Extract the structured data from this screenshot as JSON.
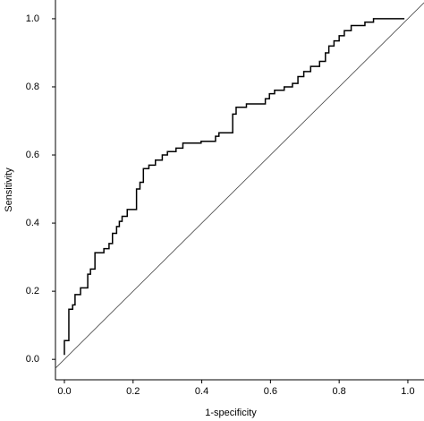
{
  "chart_data": {
    "type": "line",
    "xlabel": "1-specificity",
    "ylabel": "Sensitivity",
    "x": [
      0,
      0,
      0.013,
      0.013,
      0.024,
      0.024,
      0.031,
      0.031,
      0.047,
      0.047,
      0.068,
      0.068,
      0.076,
      0.076,
      0.089,
      0.089,
      0.115,
      0.115,
      0.13,
      0.13,
      0.14,
      0.14,
      0.152,
      0.152,
      0.16,
      0.16,
      0.168,
      0.168,
      0.183,
      0.183,
      0.21,
      0.21,
      0.22,
      0.22,
      0.23,
      0.23,
      0.246,
      0.246,
      0.265,
      0.265,
      0.285,
      0.285,
      0.3,
      0.3,
      0.325,
      0.325,
      0.345,
      0.345,
      0.398,
      0.398,
      0.44,
      0.44,
      0.45,
      0.45,
      0.49,
      0.49,
      0.5,
      0.5,
      0.53,
      0.53,
      0.585,
      0.585,
      0.597,
      0.597,
      0.612,
      0.612,
      0.64,
      0.64,
      0.664,
      0.664,
      0.68,
      0.68,
      0.697,
      0.697,
      0.717,
      0.717,
      0.743,
      0.743,
      0.76,
      0.76,
      0.77,
      0.77,
      0.785,
      0.785,
      0.8,
      0.8,
      0.815,
      0.815,
      0.835,
      0.835,
      0.875,
      0.875,
      0.9,
      0.9,
      0.99
    ],
    "values": [
      0.013,
      0.055,
      0.055,
      0.147,
      0.147,
      0.16,
      0.16,
      0.19,
      0.19,
      0.21,
      0.21,
      0.25,
      0.25,
      0.265,
      0.265,
      0.313,
      0.313,
      0.325,
      0.325,
      0.34,
      0.34,
      0.37,
      0.37,
      0.39,
      0.39,
      0.405,
      0.405,
      0.42,
      0.42,
      0.44,
      0.44,
      0.5,
      0.5,
      0.52,
      0.52,
      0.56,
      0.56,
      0.57,
      0.57,
      0.585,
      0.585,
      0.6,
      0.6,
      0.61,
      0.61,
      0.62,
      0.62,
      0.635,
      0.635,
      0.64,
      0.64,
      0.655,
      0.655,
      0.665,
      0.665,
      0.72,
      0.72,
      0.74,
      0.74,
      0.75,
      0.75,
      0.765,
      0.765,
      0.78,
      0.78,
      0.79,
      0.79,
      0.8,
      0.8,
      0.81,
      0.81,
      0.83,
      0.83,
      0.845,
      0.845,
      0.86,
      0.86,
      0.875,
      0.875,
      0.9,
      0.9,
      0.92,
      0.92,
      0.935,
      0.935,
      0.95,
      0.95,
      0.965,
      0.965,
      0.98,
      0.98,
      0.99,
      0.99,
      1.0,
      1.0
    ],
    "color": "#000000",
    "diagonal": true,
    "xlim": [
      -0.026,
      1.047
    ],
    "ylim": [
      -0.06,
      1.055
    ],
    "xticks": [
      {
        "value": 0,
        "label": "0.0"
      },
      0.2,
      0.4,
      0.6,
      0.8,
      {
        "value": 1,
        "label": "1.0"
      }
    ],
    "yticks": [
      {
        "value": 0,
        "label": "0.0"
      },
      0.2,
      0.4,
      0.6,
      0.8,
      {
        "value": 1,
        "label": "1.0"
      }
    ]
  }
}
